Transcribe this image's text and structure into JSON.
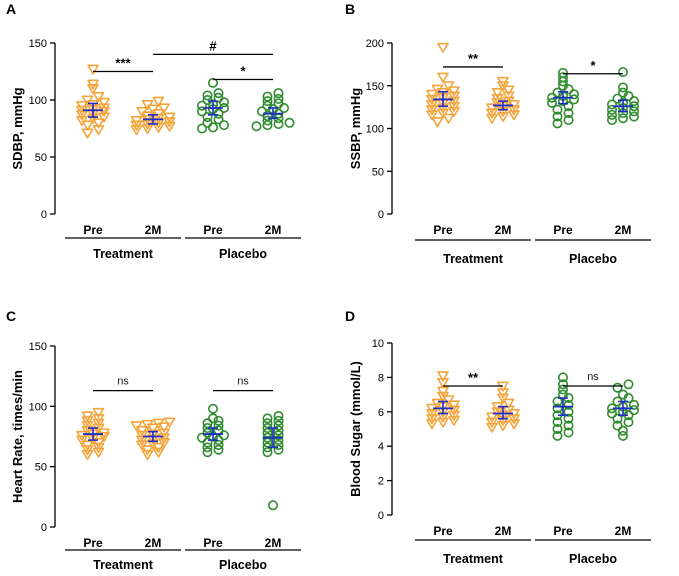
{
  "chart_data": [
    {
      "panel": "A",
      "type": "scatter",
      "ylabel": "SDBP, mmHg",
      "ylim": [
        0,
        150
      ],
      "yticks": [
        0,
        50,
        100,
        150
      ],
      "categories": [
        "Pre",
        "2M",
        "Pre",
        "2M"
      ],
      "groups": [
        {
          "label": "Treatment",
          "series": [
            0,
            1
          ]
        },
        {
          "label": "Placebo",
          "series": [
            2,
            3
          ]
        }
      ],
      "series": [
        {
          "name": "Treatment Pre",
          "marker": "triangle-down",
          "color": "#F4A43A",
          "mean": 91,
          "ci": [
            85,
            97
          ],
          "values": [
            127,
            114,
            110,
            103,
            100,
            98,
            96,
            95,
            93,
            92,
            91,
            90,
            88,
            87,
            85,
            84,
            82,
            80,
            78,
            74,
            71
          ]
        },
        {
          "name": "Treatment 2M",
          "marker": "triangle-down",
          "color": "#F4A43A",
          "mean": 83,
          "ci": [
            79,
            87
          ],
          "values": [
            99,
            96,
            93,
            92,
            90,
            88,
            86,
            85,
            84,
            83,
            82,
            81,
            80,
            79,
            78,
            77,
            76,
            75,
            74
          ]
        },
        {
          "name": "Placebo Pre",
          "marker": "circle",
          "color": "#2E8B2E",
          "mean": 93,
          "ci": [
            87,
            99
          ],
          "values": [
            115,
            106,
            104,
            102,
            100,
            98,
            96,
            95,
            93,
            92,
            90,
            88,
            85,
            83,
            80,
            78,
            76,
            75
          ]
        },
        {
          "name": "Placebo 2M",
          "marker": "circle",
          "color": "#2E8B2E",
          "mean": 88,
          "ci": [
            84,
            93
          ],
          "values": [
            106,
            103,
            101,
            99,
            97,
            95,
            93,
            92,
            90,
            88,
            86,
            84,
            82,
            80,
            79,
            78,
            77
          ]
        }
      ],
      "brackets": [
        {
          "from": 0,
          "to": 1,
          "y": 125,
          "label": "***"
        },
        {
          "from": 1,
          "to": 3,
          "y": 140,
          "label": "#"
        },
        {
          "from": 2,
          "to": 3,
          "y": 118,
          "label": "*"
        }
      ]
    },
    {
      "panel": "B",
      "type": "scatter",
      "ylabel": "SSBP, mmHg",
      "ylim": [
        0,
        200
      ],
      "yticks": [
        0,
        50,
        100,
        150,
        200
      ],
      "categories": [
        "Pre",
        "2M",
        "Pre",
        "2M"
      ],
      "groups": [
        {
          "label": "Treatment",
          "series": [
            0,
            1
          ]
        },
        {
          "label": "Placebo",
          "series": [
            2,
            3
          ]
        }
      ],
      "series": [
        {
          "name": "Treatment Pre",
          "marker": "triangle-down",
          "color": "#F4A43A",
          "mean": 134,
          "ci": [
            126,
            143
          ],
          "values": [
            195,
            160,
            150,
            146,
            144,
            142,
            140,
            138,
            136,
            134,
            132,
            130,
            128,
            126,
            124,
            122,
            120,
            118,
            116,
            112,
            108
          ]
        },
        {
          "name": "Treatment 2M",
          "marker": "triangle-down",
          "color": "#F4A43A",
          "mean": 127,
          "ci": [
            122,
            132
          ],
          "values": [
            155,
            150,
            145,
            142,
            138,
            135,
            132,
            130,
            128,
            126,
            124,
            122,
            120,
            118,
            116,
            114,
            112
          ]
        },
        {
          "name": "Placebo Pre",
          "marker": "circle",
          "color": "#2E8B2E",
          "mean": 136,
          "ci": [
            129,
            143
          ],
          "values": [
            165,
            160,
            155,
            150,
            146,
            142,
            140,
            138,
            136,
            134,
            132,
            130,
            126,
            122,
            118,
            114,
            110,
            106
          ]
        },
        {
          "name": "Placebo 2M",
          "marker": "circle",
          "color": "#2E8B2E",
          "mean": 126,
          "ci": [
            120,
            133
          ],
          "values": [
            166,
            148,
            142,
            138,
            135,
            132,
            130,
            128,
            126,
            124,
            122,
            120,
            118,
            116,
            114,
            112,
            110
          ]
        }
      ],
      "brackets": [
        {
          "from": 0,
          "to": 1,
          "y": 172,
          "label": "**"
        },
        {
          "from": 2,
          "to": 3,
          "y": 164,
          "label": "*"
        }
      ]
    },
    {
      "panel": "C",
      "type": "scatter",
      "ylabel": "Heart Rate,  times/min",
      "ylim": [
        0,
        150
      ],
      "yticks": [
        0,
        50,
        100,
        150
      ],
      "categories": [
        "Pre",
        "2M",
        "Pre",
        "2M"
      ],
      "groups": [
        {
          "label": "Treatment",
          "series": [
            0,
            1
          ]
        },
        {
          "label": "Placebo",
          "series": [
            2,
            3
          ]
        }
      ],
      "series": [
        {
          "name": "Treatment Pre",
          "marker": "triangle-down",
          "color": "#F4A43A",
          "mean": 77,
          "ci": [
            72,
            82
          ],
          "values": [
            95,
            92,
            90,
            88,
            86,
            84,
            82,
            80,
            78,
            77,
            76,
            75,
            73,
            72,
            70,
            68,
            66,
            64,
            62,
            60
          ]
        },
        {
          "name": "Treatment 2M",
          "marker": "triangle-down",
          "color": "#F4A43A",
          "mean": 75,
          "ci": [
            71,
            79
          ],
          "values": [
            87,
            86,
            85,
            84,
            83,
            82,
            80,
            78,
            77,
            76,
            74,
            73,
            72,
            70,
            69,
            68,
            66,
            64,
            62,
            60
          ]
        },
        {
          "name": "Placebo Pre",
          "marker": "circle",
          "color": "#2E8B2E",
          "mean": 77,
          "ci": [
            72,
            82
          ],
          "values": [
            98,
            90,
            88,
            86,
            84,
            82,
            80,
            78,
            76,
            75,
            74,
            72,
            70,
            68,
            66,
            64,
            62
          ]
        },
        {
          "name": "Placebo 2M",
          "marker": "circle",
          "color": "#2E8B2E",
          "mean": 74,
          "ci": [
            66,
            82
          ],
          "values": [
            92,
            90,
            88,
            86,
            84,
            82,
            80,
            78,
            76,
            74,
            72,
            70,
            68,
            66,
            64,
            62,
            18
          ]
        }
      ],
      "brackets": [
        {
          "from": 0,
          "to": 1,
          "y": 113,
          "label": "ns"
        },
        {
          "from": 2,
          "to": 3,
          "y": 113,
          "label": "ns"
        }
      ]
    },
    {
      "panel": "D",
      "type": "scatter",
      "ylabel": "Blood Sugar (mmol/L)",
      "ylim": [
        0,
        10
      ],
      "yticks": [
        0,
        2,
        4,
        6,
        8,
        10
      ],
      "categories": [
        "Pre",
        "2M",
        "Pre",
        "2M"
      ],
      "groups": [
        {
          "label": "Treatment",
          "series": [
            0,
            1
          ]
        },
        {
          "label": "Placebo",
          "series": [
            2,
            3
          ]
        }
      ],
      "series": [
        {
          "name": "Treatment Pre",
          "marker": "triangle-down",
          "color": "#F4A43A",
          "mean": 6.2,
          "ci": [
            5.9,
            6.6
          ],
          "values": [
            8.1,
            7.7,
            7.2,
            6.9,
            6.7,
            6.5,
            6.4,
            6.3,
            6.2,
            6.1,
            6.0,
            5.9,
            5.8,
            5.7,
            5.6,
            5.5,
            5.4,
            5.3
          ]
        },
        {
          "name": "Treatment 2M",
          "marker": "triangle-down",
          "color": "#F4A43A",
          "mean": 5.9,
          "ci": [
            5.6,
            6.3
          ],
          "values": [
            7.5,
            7.1,
            6.8,
            6.5,
            6.3,
            6.1,
            6.0,
            5.9,
            5.8,
            5.7,
            5.6,
            5.5,
            5.4,
            5.3,
            5.2,
            5.1
          ]
        },
        {
          "name": "Placebo Pre",
          "marker": "circle",
          "color": "#2E8B2E",
          "mean": 6.3,
          "ci": [
            5.8,
            6.8
          ],
          "values": [
            8.0,
            7.6,
            7.3,
            7.0,
            6.8,
            6.6,
            6.4,
            6.2,
            6.0,
            5.8,
            5.6,
            5.4,
            5.2,
            5.0,
            4.8,
            4.6
          ]
        },
        {
          "name": "Placebo 2M",
          "marker": "circle",
          "color": "#2E8B2E",
          "mean": 6.2,
          "ci": [
            5.8,
            6.6
          ],
          "values": [
            7.6,
            7.4,
            7.0,
            6.8,
            6.6,
            6.4,
            6.3,
            6.2,
            6.1,
            6.0,
            5.9,
            5.8,
            5.6,
            5.4,
            5.2,
            4.9,
            4.6
          ]
        }
      ],
      "brackets": [
        {
          "from": 0,
          "to": 1,
          "y": 7.5,
          "label": "**"
        },
        {
          "from": 2,
          "to": 3,
          "y": 7.5,
          "label": "ns"
        }
      ]
    }
  ],
  "style": {
    "mean_bar_color": "#1F2FC6",
    "axis_color": "#000000"
  }
}
